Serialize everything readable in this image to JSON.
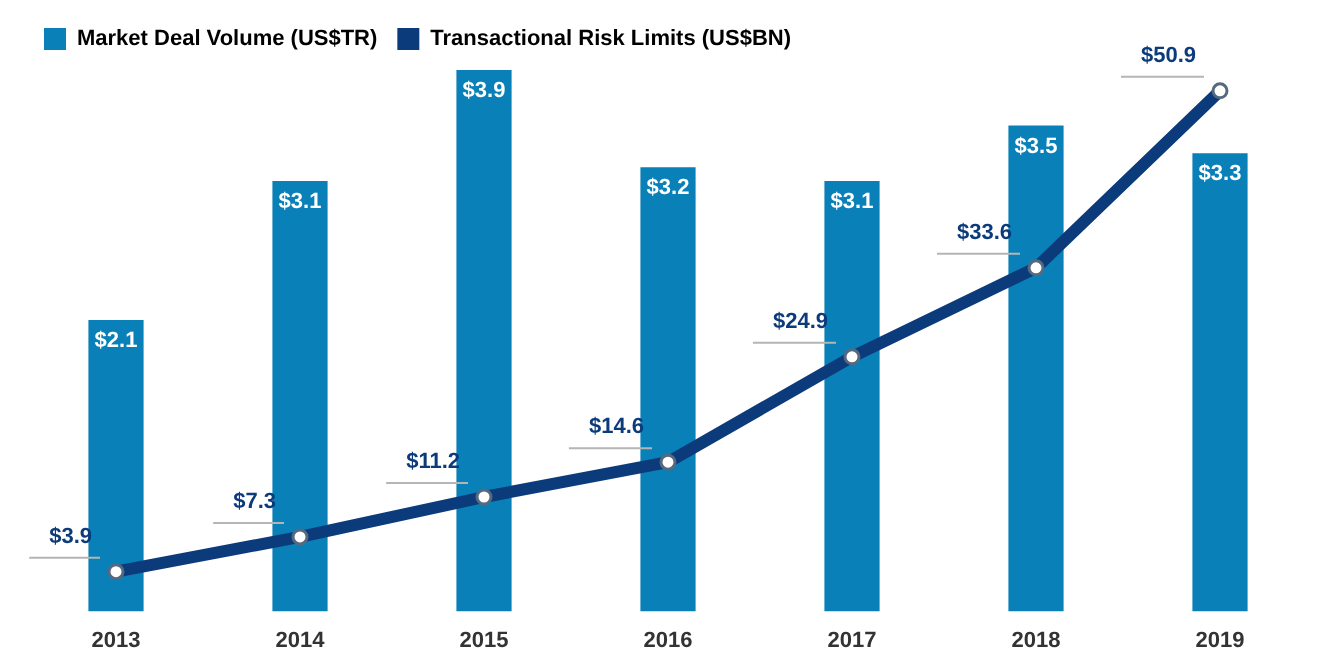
{
  "chart_data": {
    "type": "bar",
    "categories": [
      "2013",
      "2014",
      "2015",
      "2016",
      "2017",
      "2018",
      "2019"
    ],
    "series": [
      {
        "type": "bar",
        "name": "Market Deal Volume (US$TR)",
        "color": "#0a80b8",
        "values": [
          2.1,
          3.1,
          3.9,
          3.2,
          3.1,
          3.5,
          3.3
        ],
        "value_labels": [
          "$2.1",
          "$3.1",
          "$3.9",
          "$3.2",
          "$3.1",
          "$3.5",
          "$3.3"
        ]
      },
      {
        "type": "line",
        "name": "Transactional Risk Limits (US$BN)",
        "color": "#0c3b7c",
        "axis": "y2",
        "values": [
          3.9,
          7.3,
          11.2,
          14.6,
          24.9,
          33.6,
          50.9
        ],
        "value_labels": [
          "$3.9",
          "$7.3",
          "$11.2",
          "$14.6",
          "$24.9",
          "$33.6",
          "$50.9"
        ]
      }
    ],
    "legend": "top left",
    "marker": "circle",
    "grid": false,
    "tick_labels": "x"
  }
}
